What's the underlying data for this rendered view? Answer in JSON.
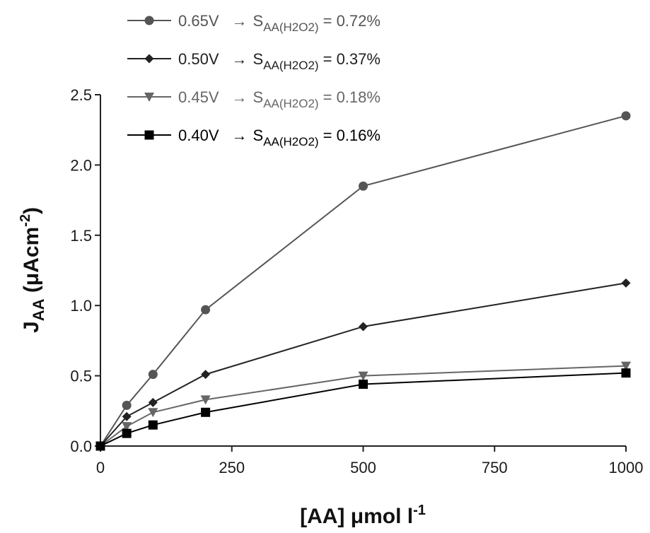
{
  "chart_data": {
    "type": "line",
    "xlabel": {
      "main": "[AA] μmol l",
      "sup": "-1"
    },
    "ylabel": {
      "j": "J",
      "sub": "AA",
      "rest": " (μAcm",
      "sup": "-2",
      "close": ")"
    },
    "xlim": [
      0,
      1000
    ],
    "ylim": [
      0,
      2.5
    ],
    "x_ticks": [
      "0",
      "250",
      "500",
      "750",
      "1000"
    ],
    "y_ticks": [
      "0.0",
      "0.5",
      "1.0",
      "1.5",
      "2.0",
      "2.5"
    ],
    "grid": false,
    "legend_position": "top-left",
    "x": [
      0,
      50,
      100,
      200,
      500,
      1000
    ],
    "series": [
      {
        "name": "0.65V",
        "marker": "circle",
        "color": "#555555",
        "values": [
          0,
          0.29,
          0.51,
          0.97,
          1.85,
          2.35
        ],
        "selectivity": {
          "arrow": "→",
          "s": "S",
          "sub": "AA(H2O2)",
          "value": "= 0.72%"
        }
      },
      {
        "name": "0.50V",
        "marker": "diamond",
        "color": "#222222",
        "values": [
          0,
          0.21,
          0.31,
          0.51,
          0.85,
          1.16
        ],
        "selectivity": {
          "arrow": "→",
          "s": "S",
          "sub": "AA(H2O2)",
          "value": "= 0.37%"
        }
      },
      {
        "name": "0.45V",
        "marker": "triangle-down",
        "color": "#666666",
        "values": [
          0,
          0.14,
          0.24,
          0.33,
          0.5,
          0.57
        ],
        "selectivity": {
          "arrow": "→",
          "s": "S",
          "sub": "AA(H2O2)",
          "value": "= 0.18%"
        }
      },
      {
        "name": "0.40V",
        "marker": "square",
        "color": "#000000",
        "values": [
          0,
          0.09,
          0.15,
          0.24,
          0.44,
          0.52
        ],
        "selectivity": {
          "arrow": "→",
          "s": "S",
          "sub": "AA(H2O2)",
          "value": "= 0.16%"
        }
      }
    ]
  }
}
